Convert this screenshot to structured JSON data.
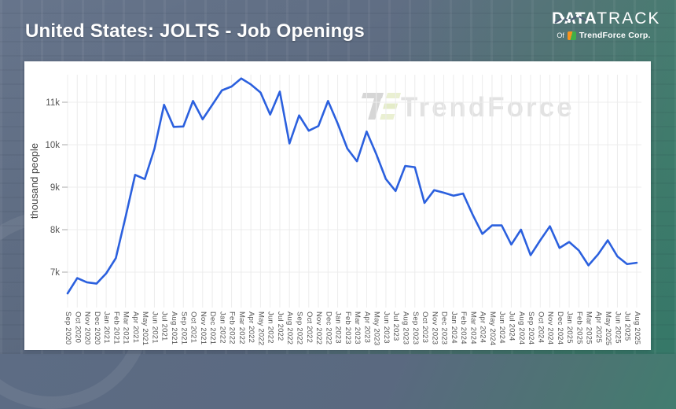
{
  "header": {
    "title": "United States: JOLTS - Job Openings",
    "logo": {
      "part1": "DATA",
      "part2": "TRACK",
      "of_label": "Of",
      "company": "TrendForce Corp."
    }
  },
  "watermark": {
    "text": "TrendForce"
  },
  "colors": {
    "line": "#2b60de",
    "grid": "#ececec",
    "tick_text": "#555555",
    "card_bg": "#ffffff",
    "header_bg": "#5a6980",
    "teal_corner": "#3e7f6e"
  },
  "chart_data": {
    "type": "line",
    "title": "United States: JOLTS - Job Openings",
    "ylabel": "thousand people",
    "xlabel": "",
    "unit": "thousand people",
    "grid": true,
    "legend_position": "none",
    "ylim": [
      6170,
      11650
    ],
    "y_ticks": [
      {
        "label": "7k",
        "value": 7000
      },
      {
        "label": "8k",
        "value": 8000
      },
      {
        "label": "9k",
        "value": 9000
      },
      {
        "label": "10k",
        "value": 10000
      },
      {
        "label": "11k",
        "value": 11000
      }
    ],
    "x": [
      "Sep 2020",
      "Oct 2020",
      "Nov 2020",
      "Dec 2020",
      "Jan 2021",
      "Feb 2021",
      "Mar 2021",
      "Apr 2021",
      "May 2021",
      "Jun 2021",
      "Jul 2021",
      "Aug 2021",
      "Sep 2021",
      "Oct 2021",
      "Nov 2021",
      "Dec 2021",
      "Jan 2022",
      "Feb 2022",
      "Mar 2022",
      "Apr 2022",
      "May 2022",
      "Jun 2022",
      "Jul 2022",
      "Aug 2022",
      "Sep 2022",
      "Oct 2022",
      "Nov 2022",
      "Dec 2022",
      "Jan 2023",
      "Feb 2023",
      "Mar 2023",
      "Apr 2023",
      "May 2023",
      "Jun 2023",
      "Jul 2023",
      "Aug 2023",
      "Sep 2023",
      "Oct 2023",
      "Nov 2023",
      "Dec 2023",
      "Jan 2024",
      "Feb 2024",
      "Mar 2024",
      "Apr 2024",
      "May 2024",
      "Jun 2024",
      "Jul 2024",
      "Aug 2024",
      "Sep 2024",
      "Oct 2024",
      "Nov 2024",
      "Dec 2024",
      "Jan 2025",
      "Feb 2025",
      "Mar 2025",
      "Apr 2025",
      "May 2025",
      "Jun 2025",
      "Jul 2025",
      "Aug 2025"
    ],
    "values": [
      6500,
      6860,
      6760,
      6730,
      6970,
      7330,
      8290,
      9290,
      9190,
      9900,
      10940,
      10420,
      10430,
      11030,
      10600,
      10940,
      11280,
      11370,
      11560,
      11420,
      11230,
      10710,
      11250,
      10030,
      10690,
      10330,
      10440,
      11030,
      10500,
      9910,
      9610,
      10310,
      9780,
      9190,
      8910,
      9500,
      9470,
      8630,
      8930,
      8870,
      8800,
      8850,
      8350,
      7900,
      8100,
      8100,
      7650,
      8000,
      7400,
      7750,
      8080,
      7570,
      7710,
      7510,
      7160,
      7420,
      7750,
      7370,
      7190,
      7220
    ]
  }
}
